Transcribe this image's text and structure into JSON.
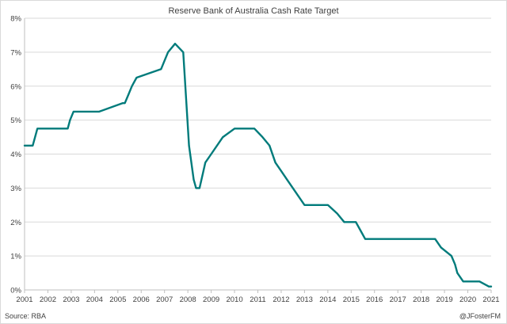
{
  "chart_data": {
    "type": "line",
    "title": "Reserve Bank of Australia Cash Rate Target",
    "xlabel": "",
    "ylabel": "",
    "xlim": [
      2001,
      2021
    ],
    "ylim": [
      0,
      8
    ],
    "x_ticks": [
      "2001",
      "2002",
      "2003",
      "2004",
      "2005",
      "2006",
      "2007",
      "2008",
      "2009",
      "2010",
      "2011",
      "2012",
      "2013",
      "2014",
      "2015",
      "2016",
      "2017",
      "2018",
      "2019",
      "2020",
      "2021"
    ],
    "y_ticks": [
      "0%",
      "1%",
      "2%",
      "3%",
      "4%",
      "5%",
      "6%",
      "7%",
      "8%"
    ],
    "grid": true,
    "legend": "none",
    "line_color": "#007b7b",
    "series": [
      {
        "x": [
          2001.0,
          2001.35,
          2001.55,
          2002.85,
          2002.95,
          2003.1,
          2004.2,
          2005.2,
          2005.3,
          2005.45,
          2005.6,
          2005.8,
          2006.85,
          2007.0,
          2007.15,
          2007.45,
          2007.8,
          2008.05,
          2008.25,
          2008.35,
          2008.5,
          2008.75,
          2009.0,
          2009.5,
          2010.0,
          2010.3,
          2010.85,
          2011.2,
          2011.5,
          2011.75,
          2012.0,
          2012.25,
          2012.5,
          2012.75,
          2013.0,
          2013.3,
          2013.6,
          2014.0,
          2014.4,
          2014.7,
          2015.0,
          2015.2,
          2015.4,
          2015.6,
          2015.9,
          2016.3,
          2016.6,
          2016.9,
          2017.3,
          2017.7,
          2018.1,
          2018.6,
          2018.85,
          2019.3,
          2019.45,
          2019.55,
          2019.8,
          2020.15,
          2020.5,
          2020.9,
          2021.0
        ],
        "y": [
          4.25,
          4.25,
          4.75,
          4.75,
          5.0,
          5.25,
          5.25,
          5.5,
          5.5,
          5.75,
          6.0,
          6.25,
          6.5,
          6.75,
          7.0,
          7.25,
          7.0,
          4.25,
          3.25,
          3.0,
          3.0,
          3.75,
          4.0,
          4.5,
          4.75,
          4.75,
          4.75,
          4.5,
          4.25,
          3.75,
          3.5,
          3.25,
          3.0,
          2.75,
          2.5,
          2.5,
          2.5,
          2.5,
          2.25,
          2.0,
          2.0,
          2.0,
          1.75,
          1.5,
          1.5,
          1.5,
          1.5,
          1.5,
          1.5,
          1.5,
          1.5,
          1.5,
          1.25,
          1.0,
          0.75,
          0.5,
          0.25,
          0.25,
          0.25,
          0.1,
          0.1
        ]
      }
    ]
  },
  "source": "Source: RBA",
  "credit": "@JFosterFM"
}
